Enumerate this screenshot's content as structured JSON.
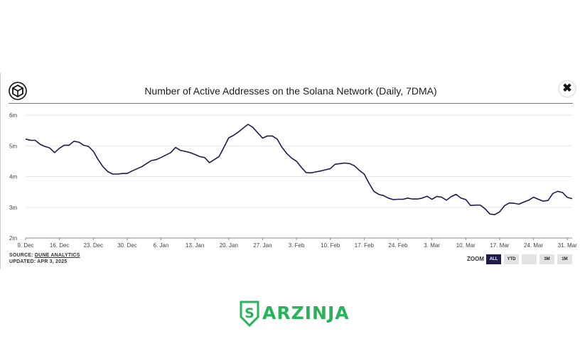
{
  "chart": {
    "title": "Number of Active Addresses on the Solana Network (Daily, 7DMA)",
    "source_prefix": "SOURCE: ",
    "source_link": "DUNE ANALYTICS",
    "updated": "UPDATED: APR 3, 2025",
    "close_symbol": "✖"
  },
  "zoom": {
    "label": "ZOOM",
    "buttons": [
      "ALL",
      "YTD",
      "",
      "3M",
      "1M"
    ],
    "active": "ALL"
  },
  "brand": {
    "name": "ARZINJA"
  },
  "colors": {
    "line": "#1f1b4d",
    "accent_rule": "#9b59d0",
    "brand": "#27b35a"
  },
  "icons": {
    "logo": "block-cube-icon",
    "close": "close-icon",
    "brand": "shield-s-icon"
  },
  "chart_data": {
    "type": "line",
    "title": "Number of Active Addresses on the Solana Network (Daily, 7DMA)",
    "xlabel": "",
    "ylabel": "",
    "x_ticks": [
      "9. Dec",
      "16. Dec",
      "23. Dec",
      "30. Dec",
      "6. Jan",
      "13. Jan",
      "20. Jan",
      "27. Jan",
      "3. Feb",
      "10. Feb",
      "17. Feb",
      "24. Feb",
      "3. Mar",
      "10. Mar",
      "17. Mar",
      "24. Mar",
      "31. Mar"
    ],
    "y_ticks": [
      "2m",
      "3m",
      "4m",
      "5m",
      "6m"
    ],
    "ylim": [
      2,
      6
    ],
    "xlim": [
      0,
      113
    ],
    "grid": true,
    "series": [
      {
        "points": [
          [
            0,
            5.22
          ],
          [
            1,
            5.18
          ],
          [
            2,
            5.18
          ],
          [
            3,
            5.05
          ],
          [
            4,
            4.98
          ],
          [
            5,
            4.93
          ],
          [
            6,
            4.78
          ],
          [
            7,
            4.92
          ],
          [
            8,
            5.02
          ],
          [
            9,
            5.02
          ],
          [
            10,
            5.15
          ],
          [
            11,
            5.12
          ],
          [
            12,
            5.02
          ],
          [
            13,
            4.98
          ],
          [
            14,
            4.82
          ],
          [
            15,
            4.55
          ],
          [
            16,
            4.32
          ],
          [
            17,
            4.16
          ],
          [
            18,
            4.08
          ],
          [
            19,
            4.08
          ],
          [
            20,
            4.1
          ],
          [
            21,
            4.1
          ],
          [
            22,
            4.18
          ],
          [
            23,
            4.25
          ],
          [
            24,
            4.32
          ],
          [
            25,
            4.42
          ],
          [
            26,
            4.52
          ],
          [
            27,
            4.55
          ],
          [
            28,
            4.62
          ],
          [
            29,
            4.7
          ],
          [
            30,
            4.78
          ],
          [
            31,
            4.95
          ],
          [
            32,
            4.85
          ],
          [
            33,
            4.82
          ],
          [
            34,
            4.78
          ],
          [
            35,
            4.72
          ],
          [
            36,
            4.65
          ],
          [
            37,
            4.62
          ],
          [
            38,
            4.45
          ],
          [
            39,
            4.55
          ],
          [
            40,
            4.65
          ],
          [
            41,
            4.95
          ],
          [
            42,
            5.26
          ],
          [
            43,
            5.34
          ],
          [
            44,
            5.45
          ],
          [
            45,
            5.58
          ],
          [
            46,
            5.7
          ],
          [
            47,
            5.6
          ],
          [
            48,
            5.42
          ],
          [
            49,
            5.25
          ],
          [
            50,
            5.32
          ],
          [
            51,
            5.32
          ],
          [
            52,
            5.22
          ],
          [
            53,
            4.95
          ],
          [
            54,
            4.75
          ],
          [
            55,
            4.6
          ],
          [
            56,
            4.5
          ],
          [
            57,
            4.3
          ],
          [
            58,
            4.13
          ],
          [
            59,
            4.12
          ],
          [
            60,
            4.15
          ],
          [
            61,
            4.18
          ],
          [
            62,
            4.22
          ],
          [
            63,
            4.26
          ],
          [
            64,
            4.4
          ],
          [
            65,
            4.42
          ],
          [
            66,
            4.44
          ],
          [
            67,
            4.42
          ],
          [
            68,
            4.35
          ],
          [
            69,
            4.2
          ],
          [
            70,
            4.08
          ],
          [
            71,
            3.78
          ],
          [
            72,
            3.52
          ],
          [
            73,
            3.42
          ],
          [
            74,
            3.38
          ],
          [
            75,
            3.3
          ],
          [
            76,
            3.25
          ],
          [
            77,
            3.26
          ],
          [
            78,
            3.26
          ],
          [
            79,
            3.3
          ],
          [
            80,
            3.27
          ],
          [
            81,
            3.27
          ],
          [
            82,
            3.3
          ],
          [
            83,
            3.36
          ],
          [
            84,
            3.26
          ],
          [
            85,
            3.35
          ],
          [
            86,
            3.33
          ],
          [
            87,
            3.23
          ],
          [
            88,
            3.35
          ],
          [
            89,
            3.42
          ],
          [
            90,
            3.3
          ],
          [
            91,
            3.25
          ],
          [
            92,
            3.06
          ],
          [
            93,
            3.07
          ],
          [
            94,
            3.07
          ],
          [
            95,
            2.95
          ],
          [
            96,
            2.78
          ],
          [
            97,
            2.76
          ],
          [
            98,
            2.85
          ],
          [
            99,
            3.05
          ],
          [
            100,
            3.14
          ],
          [
            101,
            3.13
          ],
          [
            102,
            3.1
          ],
          [
            103,
            3.17
          ],
          [
            104,
            3.23
          ],
          [
            105,
            3.33
          ],
          [
            106,
            3.26
          ],
          [
            107,
            3.2
          ],
          [
            108,
            3.22
          ],
          [
            109,
            3.45
          ],
          [
            110,
            3.52
          ],
          [
            111,
            3.48
          ],
          [
            112,
            3.32
          ],
          [
            113,
            3.28
          ]
        ]
      }
    ]
  }
}
